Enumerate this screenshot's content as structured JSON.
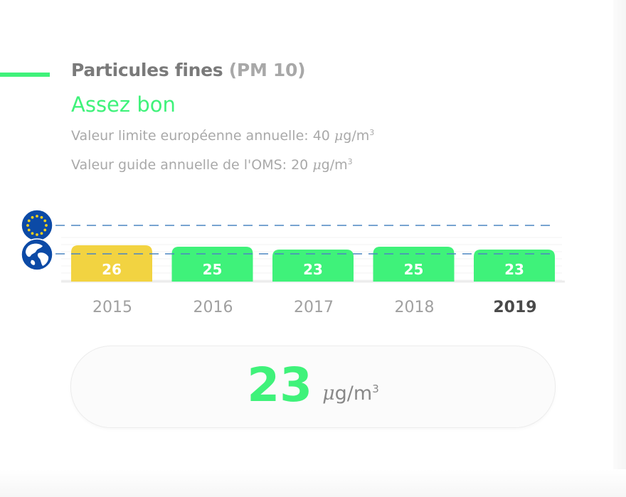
{
  "header": {
    "title": "Particules fines",
    "title_sub": "(PM 10)",
    "status": "Assez bon",
    "eu_limit_text": "Valeur limite européenne annuelle: 40 ",
    "who_guide_text": "Valeur guide annuelle de l'OMS: 20 ",
    "unit_mu": "μ",
    "unit_rest": "g/m",
    "unit_sup": "3"
  },
  "colors": {
    "accent": "#3ff27a",
    "good": "#3ff27a",
    "moderate": "#f2d341",
    "reference_line": "#4b86c2"
  },
  "icons": {
    "eu": "eu-flag-icon",
    "who": "globe-icon"
  },
  "chart_data": {
    "type": "bar",
    "categories": [
      "2015",
      "2016",
      "2017",
      "2018",
      "2019"
    ],
    "values": [
      26,
      25,
      23,
      25,
      23
    ],
    "bar_colors": [
      "#f2d341",
      "#3ff27a",
      "#3ff27a",
      "#3ff27a",
      "#3ff27a"
    ],
    "highlight_category": "2019",
    "reference_lines": [
      {
        "name": "eu",
        "value": 40
      },
      {
        "name": "who",
        "value": 20
      }
    ],
    "grid": true
  },
  "readout": {
    "value": "23",
    "unit_mu": "μ",
    "unit_rest": "g/m",
    "unit_sup": "3"
  }
}
